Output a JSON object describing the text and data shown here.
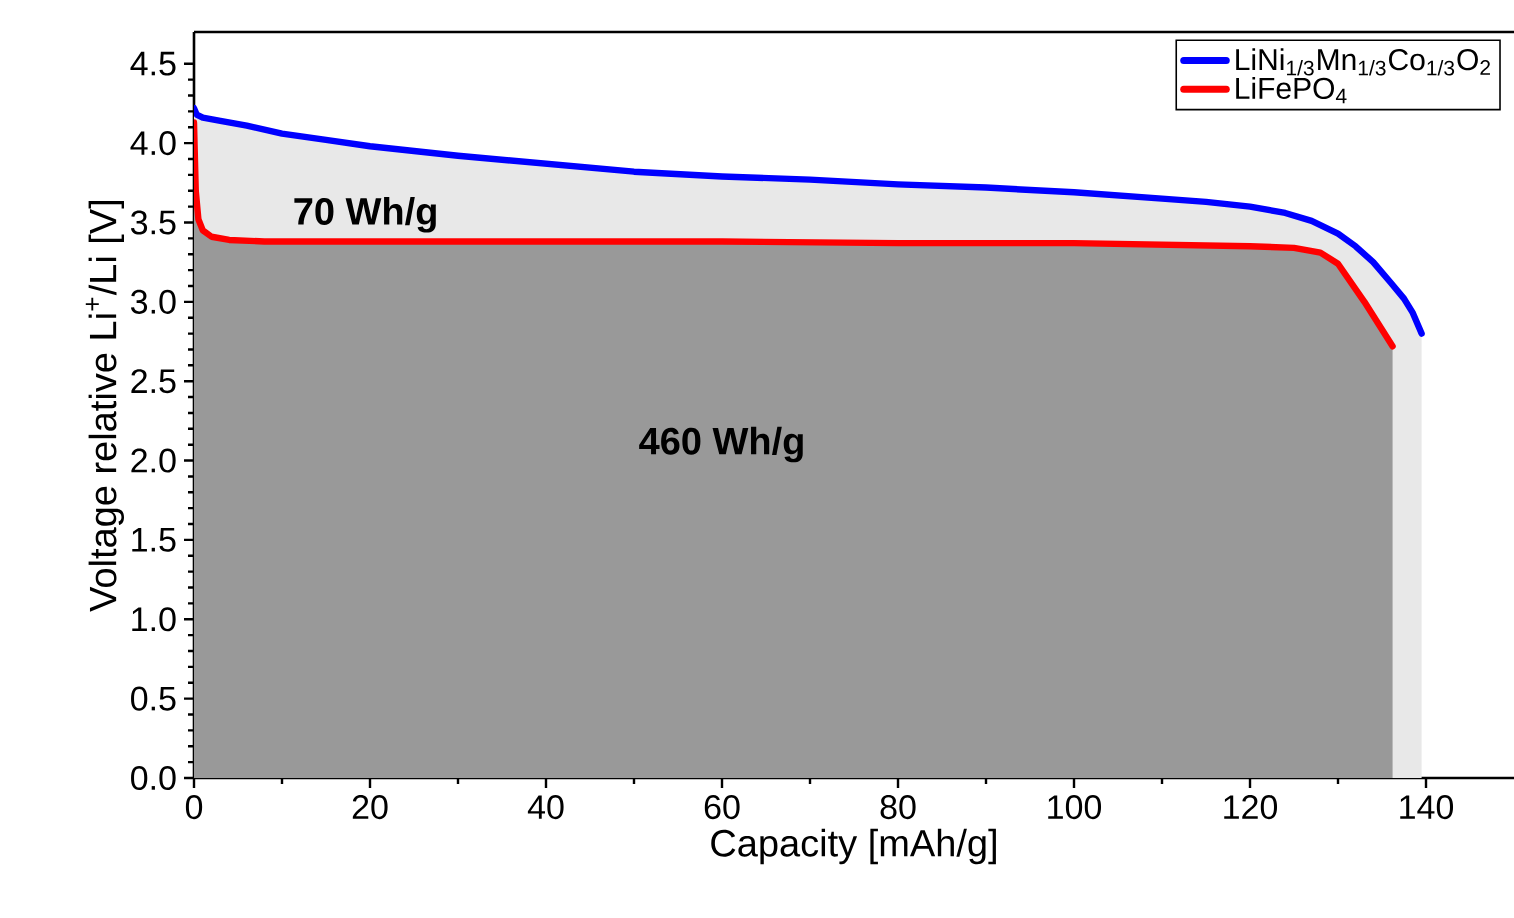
{
  "chart_data": {
    "type": "area",
    "xlabel": "Capacity [mAh/g]",
    "ylabel": "Voltage relative Li$^{+}$/Li [V]",
    "xlim": [
      0,
      150
    ],
    "ylim": [
      0,
      4.7
    ],
    "xticks": [
      0,
      20,
      40,
      60,
      80,
      100,
      120,
      140
    ],
    "yticks": [
      {
        "value": 0,
        "label": "0.0"
      },
      {
        "value": 0.5,
        "label": "0.5"
      },
      {
        "value": 1,
        "label": "1.0"
      },
      {
        "value": 1.5,
        "label": "1.5"
      },
      {
        "value": 2,
        "label": "2.0"
      },
      {
        "value": 2.5,
        "label": "2.5"
      },
      {
        "value": 3,
        "label": "3.0"
      },
      {
        "value": 3.5,
        "label": "3.5"
      },
      {
        "value": 4,
        "label": "4.0"
      },
      {
        "value": 4.5,
        "label": "4.5"
      }
    ],
    "legend": "top right",
    "annotations": [
      "70 Wh/g",
      "460 Wh/g"
    ],
    "series": [
      {
        "name": "LiNi$_{1/3}$Mn$_{1/3}$Co$_{1/3}$O$_{2}$",
        "color": "#0000ff",
        "x": [
          0,
          0.3,
          1,
          3,
          6,
          10,
          15,
          20,
          25,
          30,
          40,
          50,
          60,
          70,
          80,
          90,
          100,
          105,
          110,
          115,
          120,
          124,
          127,
          130,
          132,
          134,
          136,
          137.5,
          138.5,
          139.5
        ],
        "values": [
          4.22,
          4.18,
          4.16,
          4.14,
          4.11,
          4.06,
          4.02,
          3.98,
          3.95,
          3.92,
          3.87,
          3.82,
          3.79,
          3.77,
          3.74,
          3.72,
          3.69,
          3.67,
          3.65,
          3.63,
          3.6,
          3.56,
          3.51,
          3.43,
          3.35,
          3.25,
          3.12,
          3.02,
          2.93,
          2.8
        ]
      },
      {
        "name": "LiFePO$_{4}$",
        "color": "#ff0000",
        "x": [
          0,
          0.2,
          0.5,
          1,
          2,
          4,
          8,
          20,
          40,
          60,
          80,
          100,
          110,
          120,
          125,
          128,
          130,
          133,
          136.2
        ],
        "values": [
          4.13,
          3.7,
          3.52,
          3.45,
          3.41,
          3.39,
          3.38,
          3.38,
          3.38,
          3.38,
          3.37,
          3.37,
          3.36,
          3.35,
          3.34,
          3.31,
          3.24,
          3.0,
          2.72
        ]
      }
    ]
  }
}
